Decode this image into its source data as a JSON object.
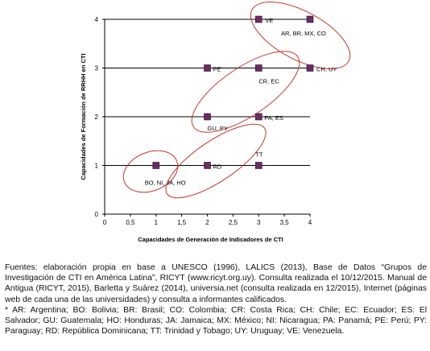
{
  "chart_data": {
    "type": "scatter",
    "xlabel": "Capacidades de Generación de Indicadores de CTI",
    "ylabel": "Capacidades de Formación de RRHH en CTI",
    "xlim": [
      0,
      4
    ],
    "ylim": [
      0,
      4
    ],
    "x_ticks": [
      "0",
      "0,5",
      "1",
      "1,5",
      "2",
      "2,5",
      "3",
      "3,5",
      "4"
    ],
    "y_ticks": [
      "0",
      "1",
      "2",
      "3",
      "4"
    ],
    "grid": "horizontal",
    "point_color": "#6a2c63",
    "ellipse_color": "#c0392b",
    "points": [
      {
        "x": 1,
        "y": 1,
        "label": "BO, NI, JA, HO"
      },
      {
        "x": 2,
        "y": 1,
        "label": "RD"
      },
      {
        "x": 3,
        "y": 1,
        "label": "TT"
      },
      {
        "x": 2,
        "y": 2,
        "label": "GU, PY"
      },
      {
        "x": 3,
        "y": 2,
        "label": "PA, ES"
      },
      {
        "x": 2,
        "y": 3,
        "label": "PE"
      },
      {
        "x": 3,
        "y": 3,
        "label": "CR, EC"
      },
      {
        "x": 4,
        "y": 3,
        "label": "CH, UY"
      },
      {
        "x": 3,
        "y": 4,
        "label": "VE"
      },
      {
        "x": 4,
        "y": 4,
        "label": "AR, BR, MX, CO"
      }
    ]
  },
  "footnote": {
    "sources": "Fuentes: elaboración propia en base a UNESCO (1996), LALICS (2013), Base de Datos “Grupos de Investigación de CTI en América Latina”, RICYT (www.ricyt.org.uy). Consulta realizada el 10/12/2015. Manual de Antigua (RICYT, 2015), Barletta y Suárez (2014), universia.net (consulta realizada en 12/2015), Internet (páginas web de cada una de las universidades) y consulta a informantes calificados.",
    "abbreviations": "* AR: Argentina; BO: Bolivia; BR: Brasil; CO: Colombia; CR: Costa Rica; CH: Chile; EC: Ecuador; ES: El Salvador; GU: Guatemala; HO: Honduras; JA: Jamaica; MX: México; NI: Nicaragua; PA: Panamá; PE: Perú; PY: Paraguay; RD: República Dominicana; TT: Trinidad y Tobago; UY: Uruguay; VE: Venezuela."
  }
}
